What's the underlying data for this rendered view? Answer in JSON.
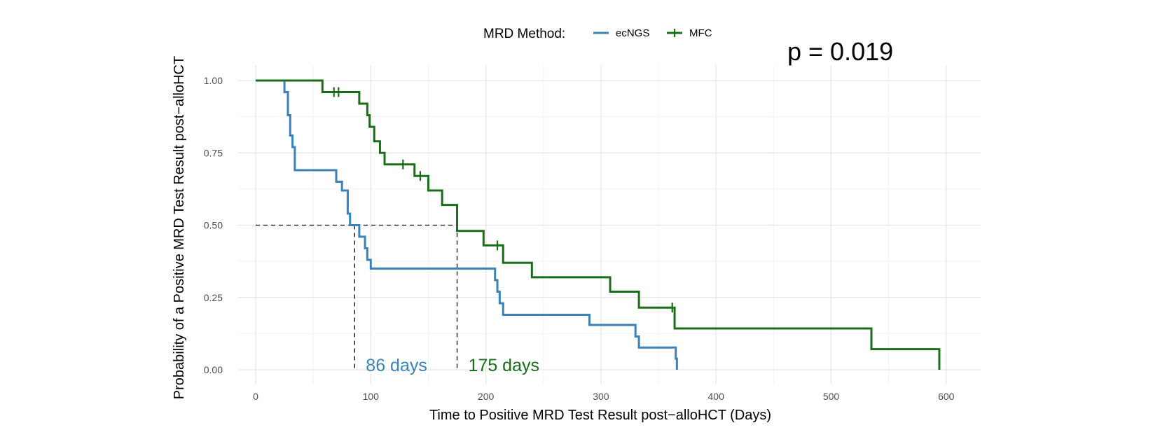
{
  "chart_data": {
    "type": "line",
    "step": true,
    "xlabel": "Time to Positive MRD Test Result post−alloHCT (Days)",
    "ylabel": "Probability of a Positive MRD Test Result post−alloHCT",
    "xlim": [
      0,
      620
    ],
    "ylim": [
      0,
      1
    ],
    "x_ticks": [
      0,
      100,
      200,
      300,
      400,
      500,
      600
    ],
    "y_ticks": [
      0,
      0.25,
      0.5,
      0.75,
      1.0
    ],
    "y_tick_labels": [
      "0.00",
      "0.25",
      "0.50",
      "0.75",
      "1.00"
    ],
    "grid": true,
    "legend": {
      "title": "MRD Method:",
      "placement": "top"
    },
    "annotation": "p = 0.019",
    "series": [
      {
        "name": "ecNGS",
        "color": "#3a82b8",
        "censor_marks": false,
        "x": [
          0,
          25,
          28,
          30,
          32,
          34,
          70,
          75,
          80,
          82,
          90,
          95,
          97,
          100,
          208,
          210,
          212,
          215,
          290,
          330,
          333,
          365,
          366
        ],
        "y": [
          1.0,
          0.96,
          0.88,
          0.81,
          0.77,
          0.69,
          0.65,
          0.62,
          0.54,
          0.5,
          0.46,
          0.42,
          0.38,
          0.35,
          0.31,
          0.27,
          0.23,
          0.19,
          0.155,
          0.115,
          0.077,
          0.038,
          0.0
        ]
      },
      {
        "name": "MFC",
        "color": "#1a6e1a",
        "censor_marks": true,
        "x": [
          0,
          58,
          90,
          97,
          99,
          103,
          108,
          112,
          138,
          150,
          162,
          175,
          198,
          215,
          240,
          308,
          333,
          364,
          535,
          594
        ],
        "y": [
          1.0,
          0.96,
          0.92,
          0.88,
          0.84,
          0.79,
          0.75,
          0.71,
          0.67,
          0.62,
          0.57,
          0.48,
          0.43,
          0.37,
          0.32,
          0.27,
          0.215,
          0.143,
          0.071,
          0.0
        ],
        "censor_x": [
          68,
          72,
          128,
          143,
          210,
          362
        ],
        "censor_y": [
          0.96,
          0.96,
          0.71,
          0.67,
          0.43,
          0.215
        ]
      }
    ],
    "medians": [
      {
        "x": 86,
        "label": "86 days",
        "color": "#3a82b8"
      },
      {
        "x": 175,
        "label": "175 days",
        "color": "#1a6e1a"
      }
    ],
    "median_y": 0.5
  }
}
